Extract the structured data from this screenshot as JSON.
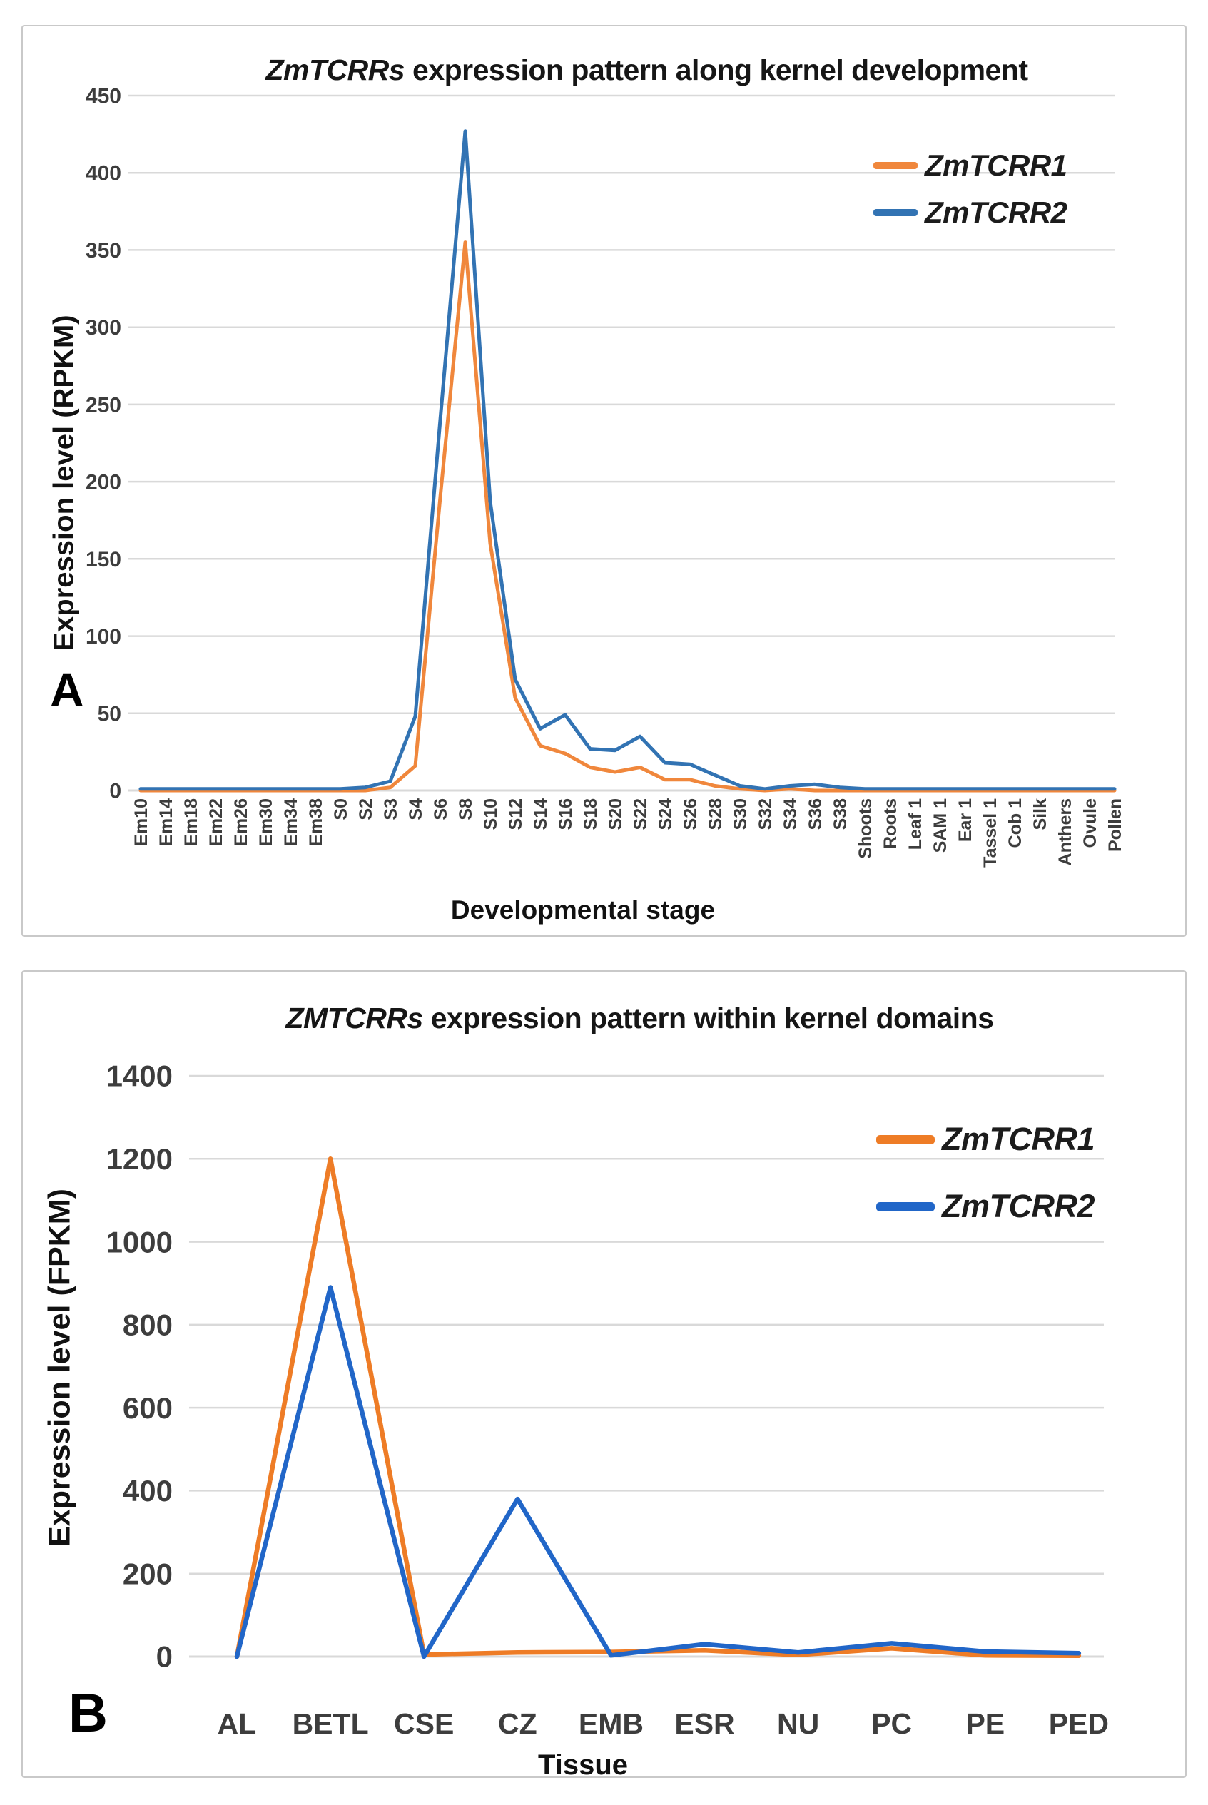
{
  "theme": {
    "background": "#ffffff",
    "panel_border_color": "#c9c9c9",
    "grid_color": "#d9d9d9",
    "tick_color": "#3d3d3d",
    "text_color": "#111111"
  },
  "panels": [
    {
      "letter": "A",
      "title_italic": "ZmTCRRs",
      "title_rest": " expression pattern along kernel development",
      "y_axis_label": "Expression level (RPKM)",
      "x_axis_label": "Developmental stage"
    },
    {
      "letter": "B",
      "title_italic": "ZMTCRRs",
      "title_rest": " expression pattern within kernel domains",
      "y_axis_label": "Expression level (FPKM)",
      "x_axis_label": "Tissue"
    }
  ],
  "chart_data": [
    {
      "type": "line",
      "title": "ZmTCRRs expression pattern along kernel development",
      "xlabel": "Developmental stage",
      "ylabel": "Expression level (RPKM)",
      "ylim": [
        0,
        450
      ],
      "ytick_step": 50,
      "yticks": [
        "0",
        "50",
        "100",
        "150",
        "200",
        "250",
        "300",
        "350",
        "400",
        "450"
      ],
      "grid": true,
      "legend_position": "inside-top-right",
      "x_label_rotation": -90,
      "categories": [
        "Em10",
        "Em14",
        "Em18",
        "Em22",
        "Em26",
        "Em30",
        "Em34",
        "Em38",
        "S0",
        "S2",
        "S3",
        "S4",
        "S6",
        "S8",
        "S10",
        "S12",
        "S14",
        "S16",
        "S18",
        "S20",
        "S22",
        "S24",
        "S26",
        "S28",
        "S30",
        "S32",
        "S34",
        "S36",
        "S38",
        "Shoots",
        "Roots",
        "Leaf 1",
        "SAM 1",
        "Ear 1",
        "Tassel 1",
        "Cob 1",
        "Silk",
        "Anthers",
        "Ovule",
        "Pollen"
      ],
      "series": [
        {
          "name": "ZmTCRR1",
          "color": "#F0873C",
          "values": [
            0,
            0,
            0,
            0,
            0,
            0,
            0,
            0,
            0,
            0,
            2,
            16,
            190,
            355,
            160,
            60,
            29,
            24,
            15,
            12,
            15,
            7,
            7,
            3,
            1,
            0,
            1,
            0,
            0,
            0,
            0,
            0,
            0,
            0,
            0,
            0,
            0,
            0,
            0,
            0
          ]
        },
        {
          "name": "ZmTCRR2",
          "color": "#3273B3",
          "values": [
            1,
            1,
            1,
            1,
            1,
            1,
            1,
            1,
            1,
            2,
            6,
            48,
            240,
            427,
            187,
            72,
            40,
            49,
            27,
            26,
            35,
            18,
            17,
            10,
            3,
            1,
            3,
            4,
            2,
            1,
            1,
            1,
            1,
            1,
            1,
            1,
            1,
            1,
            1,
            1
          ]
        }
      ]
    },
    {
      "type": "line",
      "title": "ZMTCRRs expression pattern within kernel domains",
      "xlabel": "Tissue",
      "ylabel": "Expression level (FPKM)",
      "ylim": [
        0,
        1400
      ],
      "ytick_step": 200,
      "yticks": [
        "0",
        "200",
        "400",
        "600",
        "800",
        "1000",
        "1200",
        "1400"
      ],
      "grid": true,
      "legend_position": "inside-top-right",
      "x_label_rotation": 0,
      "categories": [
        "AL",
        "BETL",
        "CSE",
        "CZ",
        "EMB",
        "ESR",
        "NU",
        "PC",
        "PE",
        "PED"
      ],
      "series": [
        {
          "name": "ZmTCRR1",
          "color": "#EE7C26",
          "values": [
            0,
            1200,
            5,
            10,
            11,
            15,
            4,
            20,
            3,
            2
          ]
        },
        {
          "name": "ZmTCRR2",
          "color": "#2166C8",
          "values": [
            0,
            890,
            0,
            380,
            3,
            30,
            10,
            32,
            12,
            8
          ]
        }
      ]
    }
  ]
}
